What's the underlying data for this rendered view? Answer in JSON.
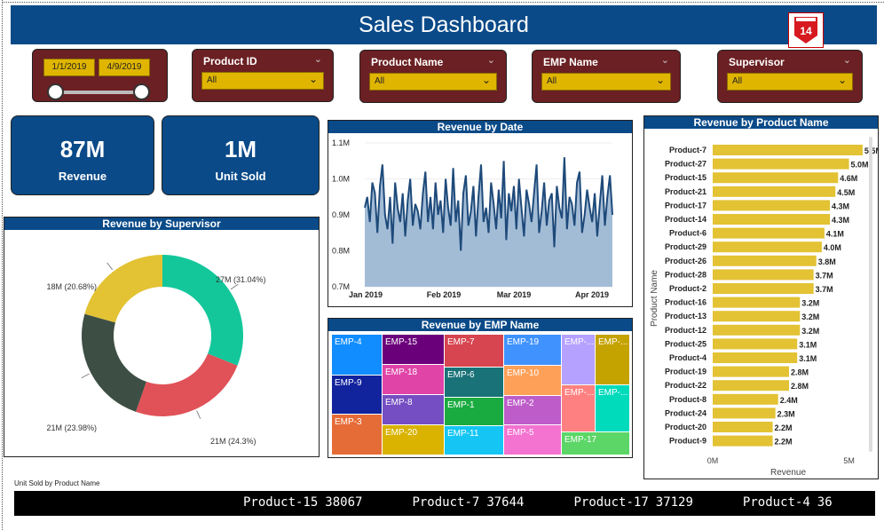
{
  "header": {
    "title": "Sales Dashboard",
    "logo_text": "14"
  },
  "filters": {
    "date": {
      "start": "1/1/2019",
      "end": "4/9/2019"
    },
    "product_id": {
      "label": "Product ID",
      "value": "All"
    },
    "product_name": {
      "label": "Product Name",
      "value": "All"
    },
    "emp_name": {
      "label": "EMP Name",
      "value": "All"
    },
    "supervisor": {
      "label": "Supervisor",
      "value": "All"
    }
  },
  "kpis": {
    "revenue": {
      "value": "87M",
      "label": "Revenue"
    },
    "units": {
      "value": "1M",
      "label": "Unit Sold"
    }
  },
  "colors": {
    "header": "#0a4a88",
    "slicer": "#6b2023",
    "accent": "#e0b500",
    "bar": "#e3c233",
    "line": "#1e4a7a",
    "area": "#a3bcd6"
  },
  "chart_data": [
    {
      "type": "pie",
      "title": "Revenue by Supervisor",
      "slices": [
        {
          "label": "27M (31.04%)",
          "value": 31.04,
          "color": "#13c79b"
        },
        {
          "label": "21M (24.3%)",
          "value": 24.3,
          "color": "#e05258"
        },
        {
          "label": "21M (23.98%)",
          "value": 23.98,
          "color": "#3d4f44"
        },
        {
          "label": "18M (20.68%)",
          "value": 20.68,
          "color": "#e3c233"
        }
      ]
    },
    {
      "type": "area",
      "title": "Revenue by Date",
      "x_ticks": [
        "Jan 2019",
        "Feb 2019",
        "Mar 2019",
        "Apr 2019"
      ],
      "y_ticks": [
        "1.1M",
        "1.0M",
        "0.9M",
        "0.8M",
        "0.7M"
      ],
      "ylim": [
        0.7,
        1.1
      ],
      "values": [
        0.92,
        0.95,
        0.88,
        0.99,
        0.96,
        0.85,
        0.98,
        1.04,
        0.9,
        0.86,
        0.95,
        0.82,
        0.99,
        0.92,
        0.88,
        0.96,
        0.84,
        0.94,
        1.0,
        0.87,
        0.93,
        0.91,
        0.86,
        0.96,
        1.02,
        0.88,
        0.95,
        0.86,
        0.99,
        0.9,
        0.94,
        0.85,
        1.0,
        0.92,
        0.87,
        1.03,
        0.88,
        0.94,
        0.8,
        0.96,
        1.01,
        0.87,
        0.91,
        0.98,
        0.84,
        0.95,
        1.04,
        0.88,
        0.92,
        0.85,
        0.99,
        0.93,
        0.86,
        0.97,
        0.89,
        1.05,
        0.83,
        0.96,
        0.91,
        0.98,
        0.86,
        1.0,
        0.92,
        0.84,
        0.97,
        0.93,
        0.88,
        0.96,
        1.04,
        0.85,
        0.91,
        0.99,
        0.87,
        0.94,
        0.96,
        0.81,
        0.98,
        0.92,
        0.89,
        1.06,
        0.86,
        0.95,
        0.93,
        0.87,
        0.99,
        1.02,
        0.85,
        0.9,
        0.97,
        0.92,
        0.88,
        0.96,
        0.84,
        0.93,
        1.01,
        0.87,
        0.95,
        1.01,
        0.9
      ]
    },
    {
      "type": "treemap",
      "title": "Revenue by EMP Name",
      "cells": [
        {
          "label": "EMP-4",
          "color": "#118dff"
        },
        {
          "label": "EMP-9",
          "color": "#12239e"
        },
        {
          "label": "EMP-3",
          "color": "#e66c37"
        },
        {
          "label": "EMP-15",
          "color": "#6b007b"
        },
        {
          "label": "EMP-18",
          "color": "#e044a7"
        },
        {
          "label": "EMP-8",
          "color": "#744ec2"
        },
        {
          "label": "EMP-20",
          "color": "#d9b300"
        },
        {
          "label": "EMP-7",
          "color": "#d64550"
        },
        {
          "label": "EMP-6",
          "color": "#197278"
        },
        {
          "label": "EMP-1",
          "color": "#1aab40"
        },
        {
          "label": "EMP-11",
          "color": "#15c6f4"
        },
        {
          "label": "EMP-19",
          "color": "#4092ff"
        },
        {
          "label": "EMP-10",
          "color": "#ffa058"
        },
        {
          "label": "EMP-2",
          "color": "#be5dc9"
        },
        {
          "label": "EMP-5",
          "color": "#f472d0"
        },
        {
          "label": "EMP-...",
          "color": "#b5a1ff"
        },
        {
          "label": "EMP-...",
          "color": "#c4a200"
        },
        {
          "label": "EMP-...",
          "color": "#ff8080"
        },
        {
          "label": "EMP-...",
          "color": "#00dbbc"
        },
        {
          "label": "EMP-17",
          "color": "#5bd667"
        }
      ]
    },
    {
      "type": "bar",
      "title": "Revenue by Product Name",
      "ylabel": "Product Name",
      "xlabel": "Revenue",
      "x_ticks": [
        "0M",
        "5M"
      ],
      "xlim": [
        0,
        5.6
      ],
      "categories": [
        "Product-7",
        "Product-27",
        "Product-15",
        "Product-21",
        "Product-17",
        "Product-14",
        "Product-6",
        "Product-29",
        "Product-26",
        "Product-28",
        "Product-2",
        "Product-16",
        "Product-13",
        "Product-12",
        "Product-25",
        "Product-4",
        "Product-19",
        "Product-22",
        "Product-8",
        "Product-24",
        "Product-20",
        "Product-9"
      ],
      "values": [
        5.5,
        5.0,
        4.6,
        4.5,
        4.3,
        4.3,
        4.1,
        4.0,
        3.8,
        3.7,
        3.7,
        3.2,
        3.2,
        3.2,
        3.1,
        3.1,
        2.8,
        2.8,
        2.4,
        2.3,
        2.2,
        2.2
      ],
      "labels": [
        "5.5M",
        "5.0M",
        "4.6M",
        "4.5M",
        "4.3M",
        "4.3M",
        "4.1M",
        "4.0M",
        "3.8M",
        "3.7M",
        "3.7M",
        "3.2M",
        "3.2M",
        "3.2M",
        "3.1M",
        "3.1M",
        "2.8M",
        "2.8M",
        "2.4M",
        "2.3M",
        "2.2M",
        "2.2M"
      ]
    }
  ],
  "ticker": {
    "label": "Unit Sold by Product Name",
    "items": [
      {
        "name": "Product-15",
        "value": "38067"
      },
      {
        "name": "Product-7",
        "value": "37644"
      },
      {
        "name": "Product-17",
        "value": "37129"
      },
      {
        "name": "Product-4",
        "value": "36"
      }
    ]
  }
}
